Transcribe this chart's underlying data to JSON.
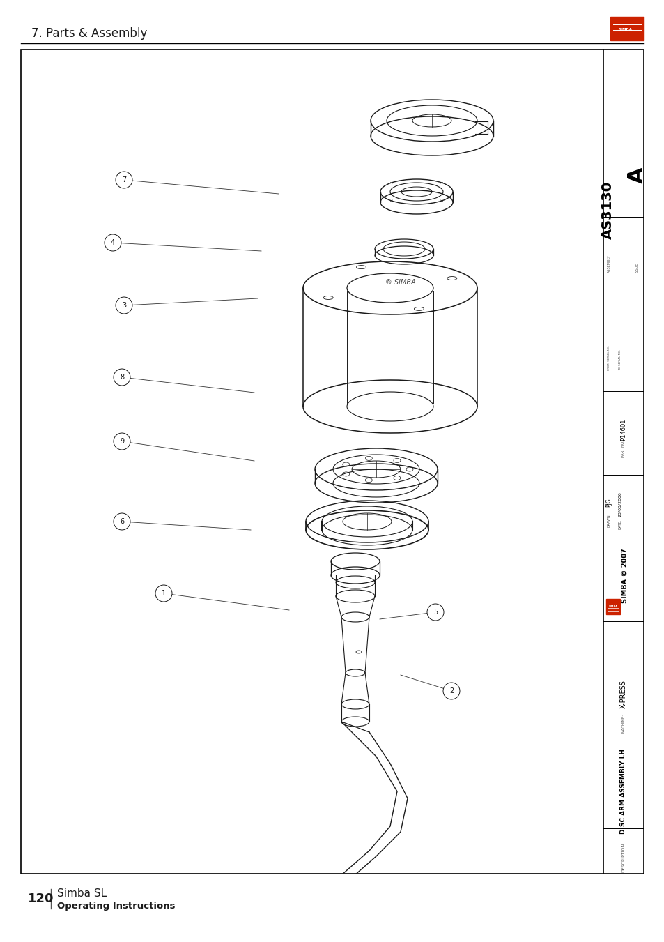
{
  "page_title": "7. Parts & Assembly",
  "page_number": "120",
  "book_title": "Simba SL",
  "book_subtitle": "Operating Instructions",
  "background_color": "#ffffff",
  "title_block": {
    "description": "DISC ARM ASSEMBLY LH",
    "machine": "X-PRESS",
    "drawn": "PJG",
    "date": "23/03/2006",
    "part_no": "P14601",
    "from_serial": "",
    "to_serial": "",
    "assembly": "AS3130",
    "issue": "A",
    "copyright": "SIMBA © 2007"
  },
  "line_color": "#2a2a2a",
  "text_color": "#1a1a1a",
  "logo_color": "#cc2200"
}
